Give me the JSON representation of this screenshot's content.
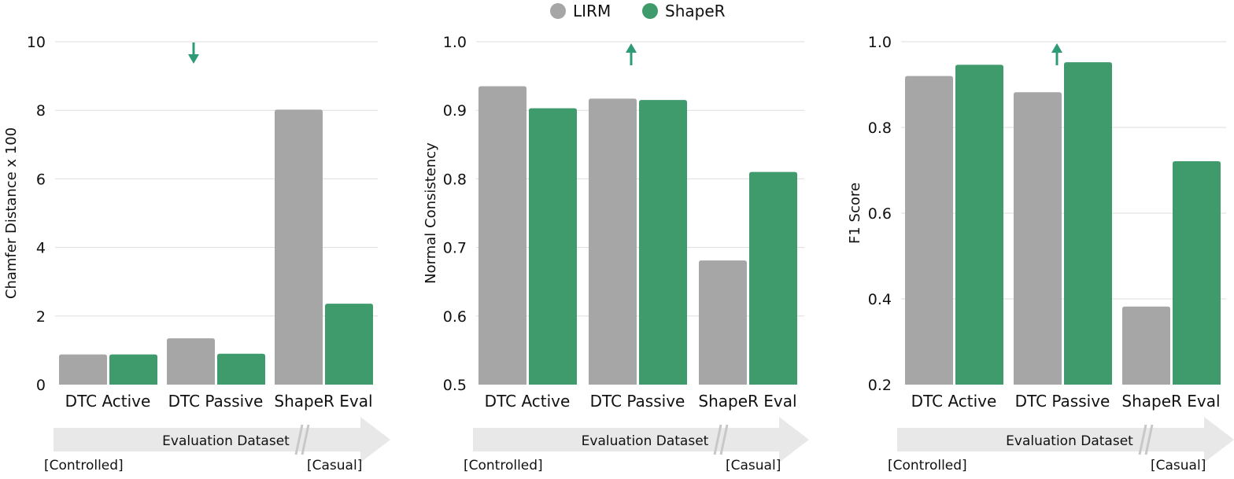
{
  "legend": {
    "items": [
      {
        "label": "LIRM",
        "color": "#a6a6a6"
      },
      {
        "label": "ShapeR",
        "color": "#3f9b6c"
      }
    ]
  },
  "dataset_arrow": {
    "label": "Evaluation Dataset",
    "left_tag": "[Controlled]",
    "right_tag": "[Casual]"
  },
  "colors": {
    "lirm": "#a6a6a6",
    "shaper": "#3f9b6c",
    "grid": "#dddddd",
    "arrow": "#e8e8e8",
    "direction": "#2e9b78"
  },
  "chart_data": [
    {
      "type": "bar",
      "ylabel": "Chamfer Distance x 100",
      "xlabel": "",
      "direction": "down",
      "ylim": [
        0,
        10
      ],
      "yticks": [
        "0",
        "2",
        "4",
        "6",
        "8",
        "10"
      ],
      "ytick_values": [
        0,
        2,
        4,
        6,
        8,
        10
      ],
      "categories": [
        "DTC Active",
        "DTC Passive",
        "ShapeR Eval"
      ],
      "series": [
        {
          "name": "LIRM",
          "values": [
            0.88,
            1.35,
            8.02
          ]
        },
        {
          "name": "ShapeR",
          "values": [
            0.88,
            0.9,
            2.36
          ]
        }
      ]
    },
    {
      "type": "bar",
      "ylabel": "Normal Consistency",
      "xlabel": "",
      "direction": "up",
      "ylim": [
        0.5,
        1.0
      ],
      "yticks": [
        "0.5",
        "0.6",
        "0.7",
        "0.8",
        "0.9",
        "1.0"
      ],
      "ytick_values": [
        0.5,
        0.6,
        0.7,
        0.8,
        0.9,
        1.0
      ],
      "categories": [
        "DTC Active",
        "DTC Passive",
        "ShapeR Eval"
      ],
      "series": [
        {
          "name": "LIRM",
          "values": [
            0.935,
            0.917,
            0.681
          ]
        },
        {
          "name": "ShapeR",
          "values": [
            0.903,
            0.915,
            0.81
          ]
        }
      ]
    },
    {
      "type": "bar",
      "ylabel": "F1 Score",
      "xlabel": "",
      "direction": "up",
      "ylim": [
        0.2,
        1.0
      ],
      "yticks": [
        "0.2",
        "0.4",
        "0.6",
        "0.8",
        "1.0"
      ],
      "ytick_values": [
        0.2,
        0.4,
        0.6,
        0.8,
        1.0
      ],
      "categories": [
        "DTC Active",
        "DTC Passive",
        "ShapeR Eval"
      ],
      "series": [
        {
          "name": "LIRM",
          "values": [
            0.92,
            0.882,
            0.382
          ]
        },
        {
          "name": "ShapeR",
          "values": [
            0.946,
            0.952,
            0.721
          ]
        }
      ]
    }
  ]
}
